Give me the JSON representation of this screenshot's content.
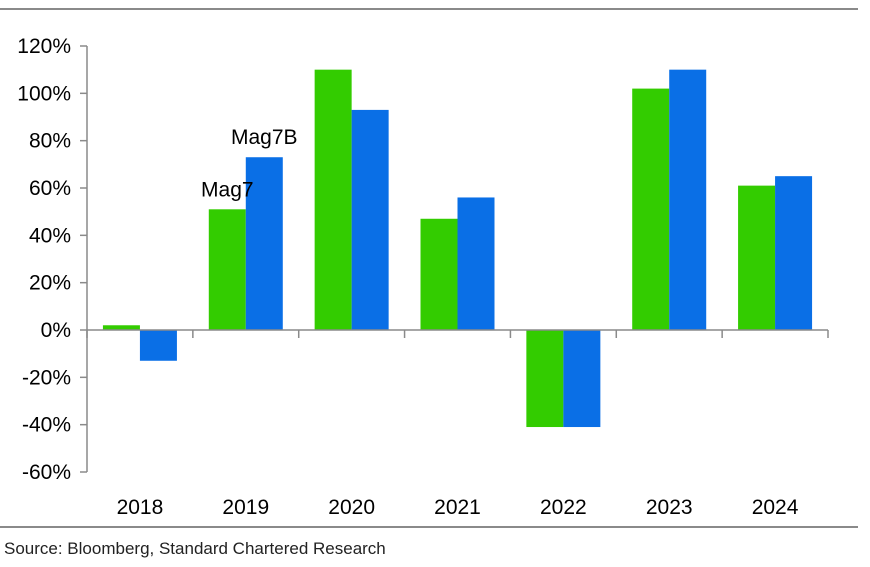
{
  "chart_data": {
    "type": "bar",
    "categories": [
      "2018",
      "2019",
      "2020",
      "2021",
      "2022",
      "2023",
      "2024"
    ],
    "series": [
      {
        "name": "Mag7",
        "color": "#33cc00",
        "values": [
          2,
          51,
          110,
          47,
          -41,
          102,
          61
        ]
      },
      {
        "name": "Mag7B",
        "color": "#0a6fe6",
        "values": [
          -13,
          73,
          93,
          56,
          -41,
          110,
          65
        ]
      }
    ],
    "ylim": [
      -60,
      120
    ],
    "yticks": [
      "-60%",
      "-40%",
      "-20%",
      "0%",
      "20%",
      "40%",
      "60%",
      "80%",
      "100%",
      "120%"
    ],
    "ytick_values": [
      -60,
      -40,
      -20,
      0,
      20,
      40,
      60,
      80,
      100,
      120
    ],
    "annotations": [
      {
        "text": "Mag7",
        "series": 0,
        "category": "2019"
      },
      {
        "text": "Mag7B",
        "series": 1,
        "category": "2019"
      }
    ],
    "grid": false,
    "title": "",
    "xlabel": "",
    "ylabel": ""
  },
  "footer": {
    "source": "Source: Bloomberg, Standard Chartered Research"
  }
}
